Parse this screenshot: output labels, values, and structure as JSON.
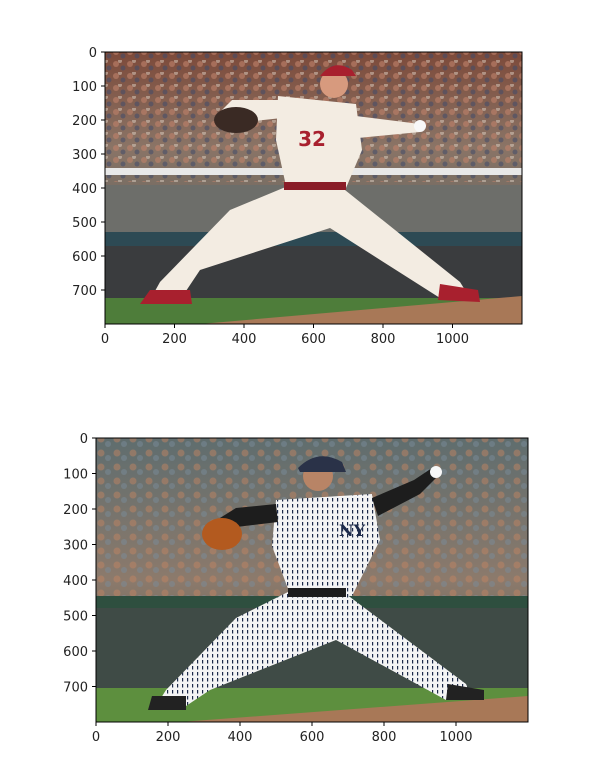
{
  "chart_data": [
    {
      "type": "image",
      "content": "pitcher in red-trimmed white uniform number 32, stadium crowd background",
      "jersey_number": "32",
      "xlim": [
        0,
        1200
      ],
      "ylim": [
        800,
        0
      ],
      "xticks": [
        0,
        200,
        400,
        600,
        800,
        1000
      ],
      "yticks": [
        0,
        100,
        200,
        300,
        400,
        500,
        600,
        700
      ],
      "xtick_labels": [
        "0",
        "200",
        "400",
        "600",
        "800",
        "1000"
      ],
      "ytick_labels": [
        "0",
        "100",
        "200",
        "300",
        "400",
        "500",
        "600",
        "700"
      ]
    },
    {
      "type": "image",
      "content": "pitcher in pinstriped New York Yankees uniform, stadium crowd background",
      "cap_logo": "NY",
      "xlim": [
        0,
        1200
      ],
      "ylim": [
        800,
        0
      ],
      "xticks": [
        0,
        200,
        400,
        600,
        800,
        1000
      ],
      "yticks": [
        0,
        100,
        200,
        300,
        400,
        500,
        600,
        700
      ],
      "xtick_labels": [
        "0",
        "200",
        "400",
        "600",
        "800",
        "1000"
      ],
      "ytick_labels": [
        "0",
        "100",
        "200",
        "300",
        "400",
        "500",
        "600",
        "700"
      ]
    }
  ],
  "colors": {
    "crowd_top": "#7a6a5e",
    "field_grass": "#4e7d3a",
    "dirt": "#a87857",
    "uniform_cream": "#f3ece2",
    "uniform_red": "#a8202e",
    "pinstripe": "#1d2a4a",
    "glove_orange": "#b35a1f",
    "wall_green": "#2e4f3f"
  }
}
